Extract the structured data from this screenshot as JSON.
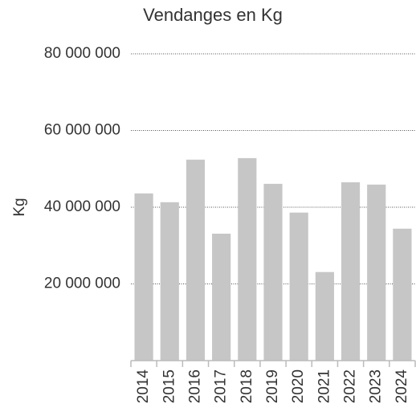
{
  "chart_data": {
    "type": "bar",
    "title": "Vendanges en Kg",
    "y_label": "Kg",
    "categories": [
      "2014",
      "2015",
      "2016",
      "2017",
      "2018",
      "2019",
      "2020",
      "2021",
      "2022",
      "2023",
      "2024"
    ],
    "values": [
      43600000,
      41300000,
      52400000,
      33100000,
      52800000,
      46100000,
      38600000,
      23100000,
      46500000,
      45900000,
      34400000
    ],
    "color": "#c6c6c6",
    "ylim": [
      0,
      80000000
    ],
    "yticks": [
      {
        "value": 20000000,
        "label": "20 000 000"
      },
      {
        "value": 40000000,
        "label": "40 000 000"
      },
      {
        "value": 60000000,
        "label": "60 000 000"
      },
      {
        "value": 80000000,
        "label": "80 000 000"
      }
    ],
    "grid": true
  }
}
